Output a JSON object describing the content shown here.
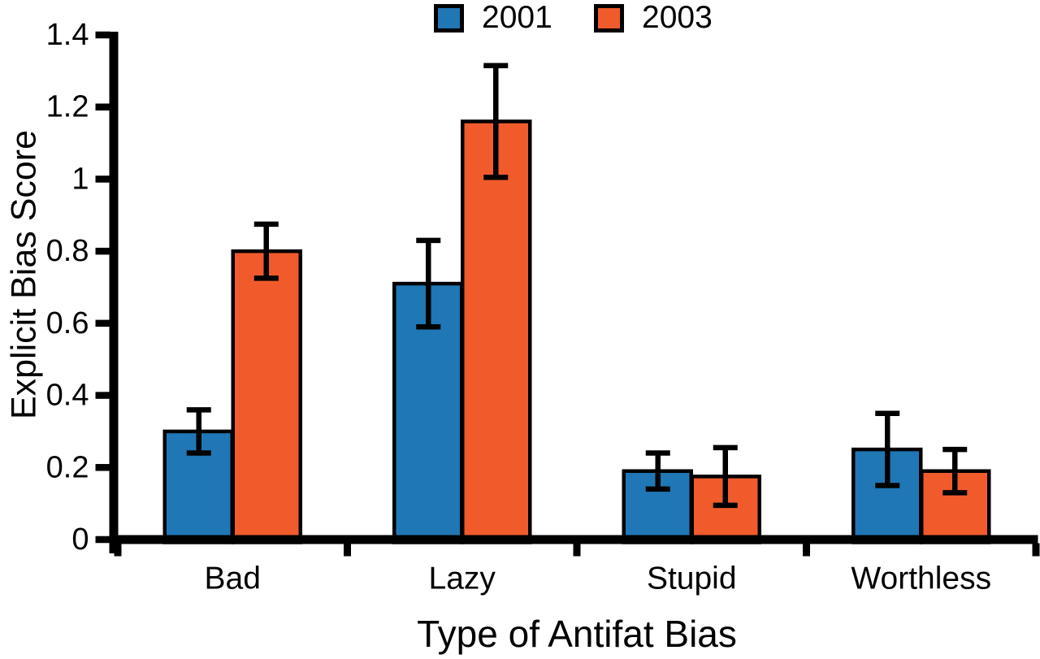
{
  "chart_data": {
    "type": "bar",
    "title": "",
    "categories": [
      "Bad",
      "Lazy",
      "Stupid",
      "Worthless"
    ],
    "series": [
      {
        "name": "2001",
        "color": "#1F77B5",
        "values": [
          0.3,
          0.71,
          0.19,
          0.25
        ],
        "errors": [
          0.06,
          0.12,
          0.05,
          0.1
        ]
      },
      {
        "name": "2003",
        "color": "#F15B2B",
        "values": [
          0.8,
          1.16,
          0.175,
          0.19
        ],
        "errors": [
          0.075,
          0.155,
          0.08,
          0.06
        ]
      }
    ],
    "xlabel": "Type of Antifat Bias",
    "ylabel": "Explicit Bias Score",
    "ylim": [
      0,
      1.4
    ],
    "yticks": [
      0,
      0.2,
      0.4,
      0.6,
      0.8,
      1,
      1.2,
      1.4
    ],
    "ytick_labels": [
      "0",
      "0.2",
      "0.4",
      "0.6",
      "0.8",
      "1",
      "1.2",
      "1.4"
    ],
    "grid": false,
    "legend_position": "top-center",
    "bar_edge_color": "#000000",
    "error_bar_color": "#000000",
    "axis_color": "#000000",
    "background": "#FFFFFF"
  }
}
